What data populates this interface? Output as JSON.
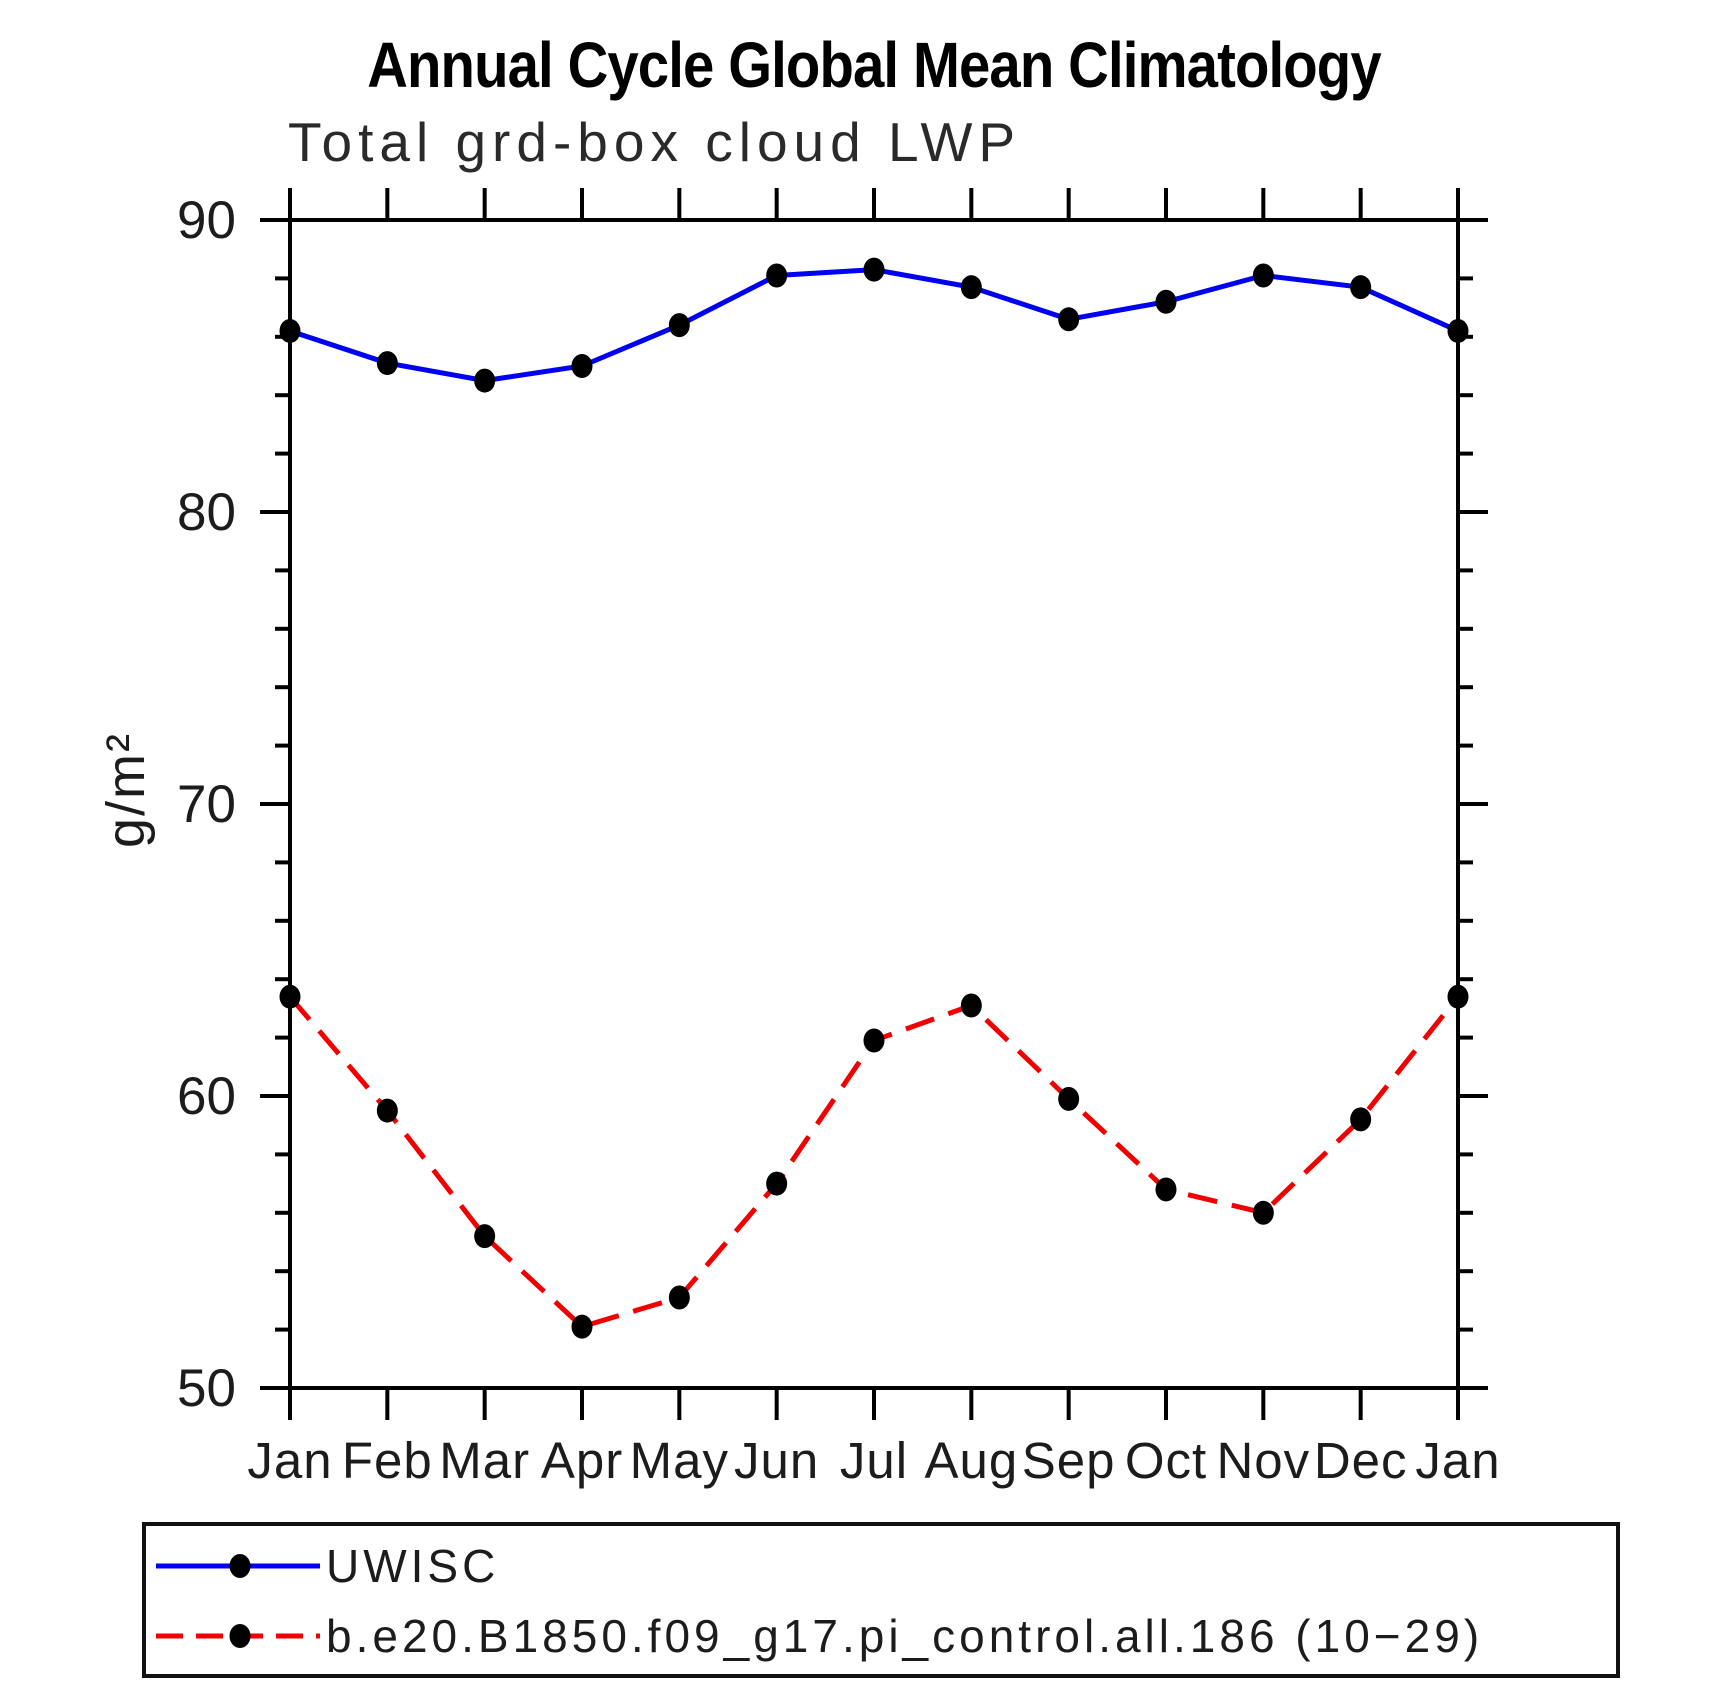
{
  "title": "Annual Cycle Global Mean Climatology",
  "subtitle": "Total grd-box cloud LWP",
  "ylabel": "g/m²",
  "legend": {
    "items": [
      {
        "label": "UWISC",
        "color": "#0000f2",
        "style": "solid"
      },
      {
        "label": "b.e20.B1850.f09_g17.pi_control.all.186 (10−29)",
        "color": "#f20000",
        "style": "dashed"
      }
    ]
  },
  "chart_data": {
    "type": "line",
    "title": "Annual Cycle Global Mean Climatology",
    "subtitle": "Total grd-box cloud LWP",
    "xlabel": "",
    "ylabel": "g/m²",
    "categories": [
      "Jan",
      "Feb",
      "Mar",
      "Apr",
      "May",
      "Jun",
      "Jul",
      "Aug",
      "Sep",
      "Oct",
      "Nov",
      "Dec",
      "Jan"
    ],
    "ylim": [
      50,
      90
    ],
    "ytick_major_interval": 10,
    "ytick_minor_interval": 2,
    "ytick_major_labels": [
      "50",
      "60",
      "70",
      "80",
      "90"
    ],
    "grid": false,
    "legend_position": "bottom",
    "marker": "filled-circle",
    "marker_color": "#000000",
    "axis_color": "#000000",
    "series": [
      {
        "name": "UWISC",
        "color": "#0000f2",
        "line_style": "solid",
        "values": [
          86.2,
          85.1,
          84.5,
          85.0,
          86.4,
          88.1,
          88.3,
          87.7,
          86.6,
          87.2,
          88.1,
          87.7,
          86.2
        ]
      },
      {
        "name": "b.e20.B1850.f09_g17.pi_control.all.186 (10−29)",
        "color": "#f20000",
        "line_style": "dashed",
        "values": [
          63.4,
          59.5,
          55.2,
          52.1,
          53.1,
          57.0,
          61.9,
          63.1,
          59.9,
          56.8,
          56.0,
          59.2,
          63.4
        ]
      }
    ]
  }
}
